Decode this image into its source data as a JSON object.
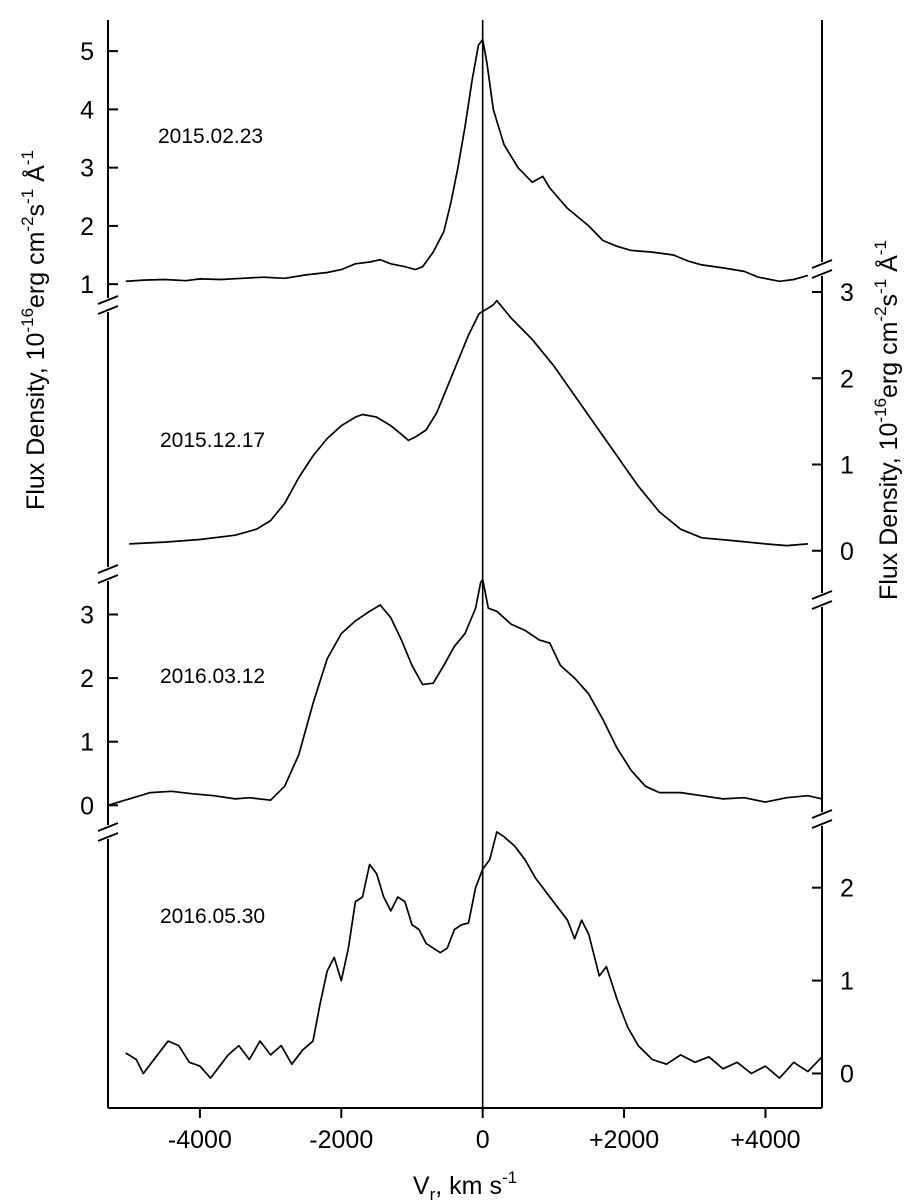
{
  "chart_data": {
    "type": "line",
    "xlabel": {
      "main": "V",
      "sub": "r",
      "unit": ",  km s",
      "sup": "-1"
    },
    "ylabel_left": {
      "pre": "Flux Density, 10",
      "sup1": "-16",
      "mid1": "erg  cm",
      "sup2": "-2",
      "mid2": "s",
      "sup3": "-1",
      "mid3": " Å",
      "sup4": "-1"
    },
    "ylabel_right": {
      "pre": "Flux Density, 10",
      "sup1": "-16",
      "mid1": "erg  cm",
      "sup2": "-2",
      "mid2": "s",
      "sup3": "-1",
      "mid3": " Å",
      "sup4": "-1"
    },
    "xlim": [
      -5300,
      4800
    ],
    "x_ticks": [
      {
        "value": -4000,
        "label": "-4000"
      },
      {
        "value": -2000,
        "label": "-2000"
      },
      {
        "value": 0,
        "label": "0"
      },
      {
        "value": 2000,
        "label": "+2000"
      },
      {
        "value": 4000,
        "label": "+4000"
      }
    ],
    "vertical_reference_line": 0,
    "series": [
      {
        "date": "2015.02.23",
        "axis": "left",
        "ylim": [
          0.9,
          5.5
        ],
        "y_ticks": [
          {
            "value": 1,
            "label": "1"
          },
          {
            "value": 2,
            "label": "2"
          },
          {
            "value": 3,
            "label": "3"
          },
          {
            "value": 4,
            "label": "4"
          },
          {
            "value": 5,
            "label": "5"
          }
        ],
        "points": [
          [
            -5050,
            1.05
          ],
          [
            -4800,
            1.07
          ],
          [
            -4500,
            1.08
          ],
          [
            -4200,
            1.06
          ],
          [
            -4000,
            1.09
          ],
          [
            -3700,
            1.08
          ],
          [
            -3400,
            1.1
          ],
          [
            -3100,
            1.12
          ],
          [
            -2800,
            1.1
          ],
          [
            -2500,
            1.16
          ],
          [
            -2200,
            1.2
          ],
          [
            -2000,
            1.25
          ],
          [
            -1800,
            1.35
          ],
          [
            -1600,
            1.38
          ],
          [
            -1450,
            1.42
          ],
          [
            -1300,
            1.35
          ],
          [
            -1100,
            1.3
          ],
          [
            -950,
            1.25
          ],
          [
            -850,
            1.3
          ],
          [
            -700,
            1.55
          ],
          [
            -550,
            1.9
          ],
          [
            -450,
            2.4
          ],
          [
            -350,
            3.0
          ],
          [
            -250,
            3.7
          ],
          [
            -150,
            4.5
          ],
          [
            -60,
            5.1
          ],
          [
            0,
            5.2
          ],
          [
            60,
            4.8
          ],
          [
            150,
            4.0
          ],
          [
            300,
            3.4
          ],
          [
            500,
            3.0
          ],
          [
            700,
            2.75
          ],
          [
            850,
            2.85
          ],
          [
            950,
            2.65
          ],
          [
            1200,
            2.3
          ],
          [
            1500,
            2.0
          ],
          [
            1700,
            1.75
          ],
          [
            1900,
            1.65
          ],
          [
            2100,
            1.58
          ],
          [
            2400,
            1.55
          ],
          [
            2700,
            1.5
          ],
          [
            2900,
            1.4
          ],
          [
            3100,
            1.33
          ],
          [
            3400,
            1.28
          ],
          [
            3700,
            1.22
          ],
          [
            3900,
            1.12
          ],
          [
            4200,
            1.05
          ],
          [
            4400,
            1.08
          ],
          [
            4600,
            1.15
          ]
        ]
      },
      {
        "date": "2015.12.17",
        "axis": "right",
        "ylim": [
          -0.2,
          3.0
        ],
        "y_ticks": [
          {
            "value": 0,
            "label": "0"
          },
          {
            "value": 1,
            "label": "1"
          },
          {
            "value": 2,
            "label": "2"
          },
          {
            "value": 3,
            "label": "3"
          }
        ],
        "points": [
          [
            -5000,
            0.08
          ],
          [
            -4500,
            0.1
          ],
          [
            -4000,
            0.13
          ],
          [
            -3500,
            0.18
          ],
          [
            -3200,
            0.25
          ],
          [
            -3000,
            0.35
          ],
          [
            -2800,
            0.55
          ],
          [
            -2600,
            0.85
          ],
          [
            -2400,
            1.1
          ],
          [
            -2200,
            1.3
          ],
          [
            -2000,
            1.45
          ],
          [
            -1800,
            1.55
          ],
          [
            -1700,
            1.58
          ],
          [
            -1500,
            1.55
          ],
          [
            -1300,
            1.45
          ],
          [
            -1150,
            1.35
          ],
          [
            -1050,
            1.28
          ],
          [
            -950,
            1.32
          ],
          [
            -800,
            1.4
          ],
          [
            -650,
            1.6
          ],
          [
            -500,
            1.9
          ],
          [
            -350,
            2.2
          ],
          [
            -200,
            2.5
          ],
          [
            -50,
            2.75
          ],
          [
            50,
            2.8
          ],
          [
            150,
            2.85
          ],
          [
            200,
            2.9
          ],
          [
            400,
            2.7
          ],
          [
            700,
            2.45
          ],
          [
            1000,
            2.15
          ],
          [
            1300,
            1.8
          ],
          [
            1600,
            1.45
          ],
          [
            1900,
            1.1
          ],
          [
            2200,
            0.75
          ],
          [
            2500,
            0.45
          ],
          [
            2800,
            0.25
          ],
          [
            3100,
            0.15
          ],
          [
            3500,
            0.12
          ],
          [
            4000,
            0.08
          ],
          [
            4300,
            0.06
          ],
          [
            4600,
            0.08
          ]
        ]
      },
      {
        "date": "2016.03.12",
        "axis": "left",
        "ylim": [
          -0.2,
          3.7
        ],
        "y_ticks": [
          {
            "value": 0,
            "label": "0"
          },
          {
            "value": 1,
            "label": "1"
          },
          {
            "value": 2,
            "label": "2"
          },
          {
            "value": 3,
            "label": "3"
          }
        ],
        "points": [
          [
            -5300,
            0.0
          ],
          [
            -5000,
            0.1
          ],
          [
            -4700,
            0.2
          ],
          [
            -4400,
            0.22
          ],
          [
            -4100,
            0.18
          ],
          [
            -3800,
            0.15
          ],
          [
            -3500,
            0.1
          ],
          [
            -3300,
            0.12
          ],
          [
            -3000,
            0.08
          ],
          [
            -2800,
            0.3
          ],
          [
            -2600,
            0.8
          ],
          [
            -2400,
            1.6
          ],
          [
            -2200,
            2.3
          ],
          [
            -2000,
            2.7
          ],
          [
            -1800,
            2.9
          ],
          [
            -1600,
            3.05
          ],
          [
            -1450,
            3.15
          ],
          [
            -1300,
            2.95
          ],
          [
            -1150,
            2.6
          ],
          [
            -1000,
            2.2
          ],
          [
            -850,
            1.9
          ],
          [
            -700,
            1.92
          ],
          [
            -550,
            2.2
          ],
          [
            -400,
            2.5
          ],
          [
            -250,
            2.7
          ],
          [
            -100,
            3.1
          ],
          [
            -30,
            3.5
          ],
          [
            0,
            3.55
          ],
          [
            80,
            3.1
          ],
          [
            200,
            3.05
          ],
          [
            400,
            2.85
          ],
          [
            600,
            2.75
          ],
          [
            800,
            2.6
          ],
          [
            950,
            2.55
          ],
          [
            1100,
            2.2
          ],
          [
            1300,
            2.0
          ],
          [
            1500,
            1.75
          ],
          [
            1700,
            1.35
          ],
          [
            1900,
            0.9
          ],
          [
            2100,
            0.55
          ],
          [
            2300,
            0.3
          ],
          [
            2500,
            0.2
          ],
          [
            2800,
            0.2
          ],
          [
            3100,
            0.15
          ],
          [
            3400,
            0.1
          ],
          [
            3700,
            0.12
          ],
          [
            4000,
            0.05
          ],
          [
            4300,
            0.12
          ],
          [
            4600,
            0.15
          ],
          [
            4800,
            0.1
          ]
        ]
      },
      {
        "date": "2016.05.30",
        "axis": "right",
        "ylim": [
          -0.35,
          2.75
        ],
        "y_ticks": [
          {
            "value": 0,
            "label": "0"
          },
          {
            "value": 1,
            "label": "1"
          },
          {
            "value": 2,
            "label": "2"
          }
        ],
        "points": [
          [
            -5050,
            0.22
          ],
          [
            -4900,
            0.15
          ],
          [
            -4800,
            0.0
          ],
          [
            -4700,
            0.1
          ],
          [
            -4550,
            0.25
          ],
          [
            -4450,
            0.35
          ],
          [
            -4300,
            0.3
          ],
          [
            -4150,
            0.12
          ],
          [
            -4000,
            0.08
          ],
          [
            -3850,
            -0.05
          ],
          [
            -3750,
            0.05
          ],
          [
            -3600,
            0.2
          ],
          [
            -3450,
            0.3
          ],
          [
            -3300,
            0.15
          ],
          [
            -3150,
            0.35
          ],
          [
            -3000,
            0.2
          ],
          [
            -2850,
            0.3
          ],
          [
            -2700,
            0.1
          ],
          [
            -2550,
            0.25
          ],
          [
            -2400,
            0.35
          ],
          [
            -2300,
            0.75
          ],
          [
            -2200,
            1.1
          ],
          [
            -2100,
            1.25
          ],
          [
            -2000,
            1.0
          ],
          [
            -1900,
            1.35
          ],
          [
            -1800,
            1.85
          ],
          [
            -1700,
            1.9
          ],
          [
            -1600,
            2.25
          ],
          [
            -1500,
            2.15
          ],
          [
            -1400,
            1.9
          ],
          [
            -1300,
            1.75
          ],
          [
            -1200,
            1.9
          ],
          [
            -1100,
            1.85
          ],
          [
            -1000,
            1.6
          ],
          [
            -900,
            1.55
          ],
          [
            -800,
            1.4
          ],
          [
            -700,
            1.35
          ],
          [
            -600,
            1.3
          ],
          [
            -500,
            1.35
          ],
          [
            -400,
            1.55
          ],
          [
            -300,
            1.6
          ],
          [
            -200,
            1.62
          ],
          [
            -100,
            2.0
          ],
          [
            0,
            2.2
          ],
          [
            100,
            2.3
          ],
          [
            200,
            2.6
          ],
          [
            300,
            2.55
          ],
          [
            450,
            2.45
          ],
          [
            600,
            2.3
          ],
          [
            750,
            2.1
          ],
          [
            900,
            1.95
          ],
          [
            1050,
            1.8
          ],
          [
            1200,
            1.65
          ],
          [
            1300,
            1.45
          ],
          [
            1400,
            1.65
          ],
          [
            1500,
            1.5
          ],
          [
            1650,
            1.05
          ],
          [
            1750,
            1.15
          ],
          [
            1900,
            0.8
          ],
          [
            2050,
            0.5
          ],
          [
            2200,
            0.3
          ],
          [
            2400,
            0.15
          ],
          [
            2600,
            0.1
          ],
          [
            2800,
            0.2
          ],
          [
            3000,
            0.12
          ],
          [
            3200,
            0.18
          ],
          [
            3400,
            0.05
          ],
          [
            3600,
            0.12
          ],
          [
            3800,
            0.0
          ],
          [
            4000,
            0.08
          ],
          [
            4200,
            -0.05
          ],
          [
            4400,
            0.12
          ],
          [
            4600,
            0.02
          ],
          [
            4800,
            0.18
          ]
        ]
      }
    ]
  }
}
